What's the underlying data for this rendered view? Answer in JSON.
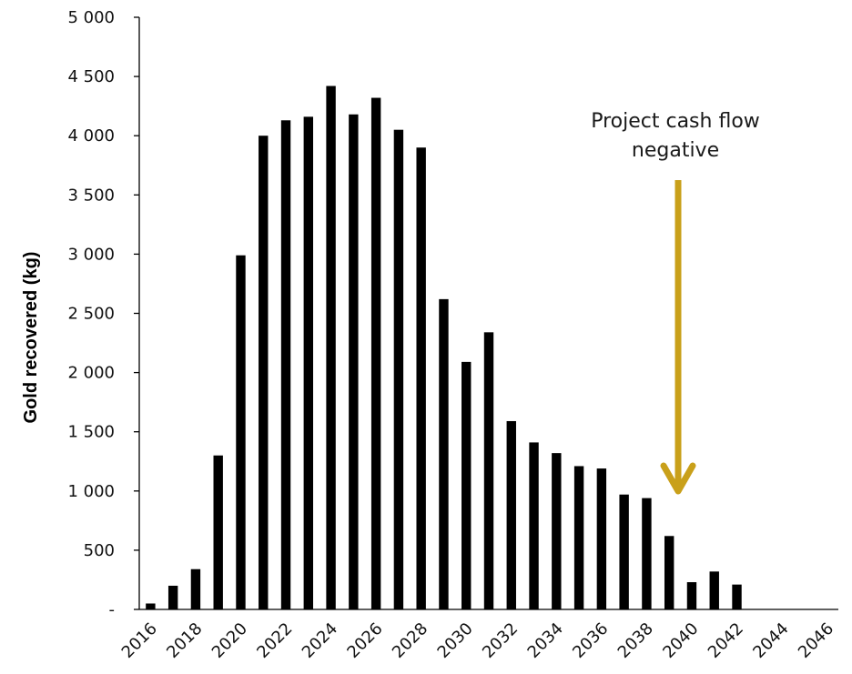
{
  "chart_data": {
    "type": "bar",
    "ylabel": "Gold recovered (kg)",
    "xlabel": "",
    "ylim": [
      0,
      5000
    ],
    "y_ticks": [
      "-",
      "500",
      "1 000",
      "1 500",
      "2 000",
      "2 500",
      "3 000",
      "3 500",
      "4 000",
      "4 500",
      "5 000"
    ],
    "x_tick_labels": [
      "2016",
      "2018",
      "2020",
      "2022",
      "2024",
      "2026",
      "2028",
      "2030",
      "2032",
      "2034",
      "2036",
      "2038",
      "2040",
      "2042",
      "2044",
      "2046"
    ],
    "categories": [
      "2016",
      "2017",
      "2018",
      "2019",
      "2020",
      "2021",
      "2022",
      "2023",
      "2024",
      "2025",
      "2026",
      "2027",
      "2028",
      "2029",
      "2030",
      "2031",
      "2032",
      "2033",
      "2034",
      "2035",
      "2036",
      "2037",
      "2038",
      "2039",
      "2040",
      "2041",
      "2042",
      "2043",
      "2044",
      "2045",
      "2046"
    ],
    "values": [
      50,
      200,
      340,
      1300,
      2990,
      4000,
      4130,
      4160,
      4420,
      4180,
      4320,
      4050,
      3900,
      2620,
      2090,
      2340,
      1590,
      1410,
      1320,
      1210,
      1190,
      970,
      940,
      620,
      230,
      320,
      210,
      0,
      0,
      0,
      0
    ],
    "bar_color": "#000000",
    "grid": false,
    "annotation": {
      "lines": [
        "Project cash flow",
        "negative"
      ],
      "arrow_color": "#C9A01A",
      "points_to": "2039"
    }
  }
}
